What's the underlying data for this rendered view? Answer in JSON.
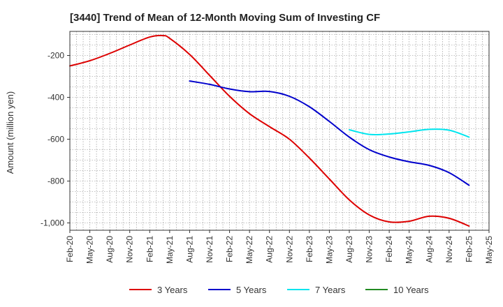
{
  "chart_data": {
    "type": "line",
    "title": "[3440]  Trend of Mean of 12-Month Moving Sum of Investing CF",
    "xlabel": "",
    "ylabel": "Amount (million yen)",
    "ylim": [
      -1035,
      -85
    ],
    "yticks": [
      -200,
      -400,
      -600,
      -800,
      -1000
    ],
    "ytick_labels": [
      "-200",
      "-400",
      "-600",
      "-800",
      "-1,000"
    ],
    "xticks": [
      "Feb-20",
      "May-20",
      "Aug-20",
      "Nov-20",
      "Feb-21",
      "May-21",
      "Aug-21",
      "Nov-21",
      "Feb-22",
      "May-22",
      "Aug-22",
      "Nov-22",
      "Feb-23",
      "May-23",
      "Aug-23",
      "Nov-23",
      "Feb-24",
      "May-24",
      "Aug-24",
      "Nov-24",
      "Feb-25",
      "May-25"
    ],
    "grid": true,
    "legend_position": "bottom",
    "series": [
      {
        "name": "3 Years",
        "color": "#dd0000",
        "points": [
          [
            "Feb-20",
            -250
          ],
          [
            "May-20",
            -225
          ],
          [
            "Aug-20",
            -190
          ],
          [
            "Nov-20",
            -150
          ],
          [
            "Feb-21",
            -112
          ],
          [
            "Apr-21",
            -105
          ],
          [
            "May-21",
            -118
          ],
          [
            "Aug-21",
            -195
          ],
          [
            "Nov-21",
            -295
          ],
          [
            "Feb-22",
            -395
          ],
          [
            "May-22",
            -478
          ],
          [
            "Aug-22",
            -540
          ],
          [
            "Nov-22",
            -600
          ],
          [
            "Feb-23",
            -690
          ],
          [
            "May-23",
            -790
          ],
          [
            "Aug-23",
            -890
          ],
          [
            "Nov-23",
            -962
          ],
          [
            "Feb-24",
            -995
          ],
          [
            "May-24",
            -992
          ],
          [
            "Aug-24",
            -968
          ],
          [
            "Nov-24",
            -978
          ],
          [
            "Feb-25",
            -1015
          ]
        ]
      },
      {
        "name": "5 Years",
        "color": "#0000cc",
        "points": [
          [
            "Aug-21",
            -322
          ],
          [
            "Nov-21",
            -338
          ],
          [
            "Feb-22",
            -360
          ],
          [
            "May-22",
            -373
          ],
          [
            "Aug-22",
            -372
          ],
          [
            "Nov-22",
            -395
          ],
          [
            "Feb-23",
            -445
          ],
          [
            "May-23",
            -515
          ],
          [
            "Aug-23",
            -590
          ],
          [
            "Nov-23",
            -650
          ],
          [
            "Feb-24",
            -685
          ],
          [
            "May-24",
            -708
          ],
          [
            "Aug-24",
            -725
          ],
          [
            "Nov-24",
            -760
          ],
          [
            "Feb-25",
            -820
          ]
        ]
      },
      {
        "name": "7 Years",
        "color": "#00e5ee",
        "points": [
          [
            "Aug-23",
            -555
          ],
          [
            "Nov-23",
            -577
          ],
          [
            "Feb-24",
            -575
          ],
          [
            "May-24",
            -565
          ],
          [
            "Aug-24",
            -553
          ],
          [
            "Nov-24",
            -557
          ],
          [
            "Feb-25",
            -590
          ]
        ]
      },
      {
        "name": "10 Years",
        "color": "#228b22",
        "points": []
      }
    ]
  }
}
